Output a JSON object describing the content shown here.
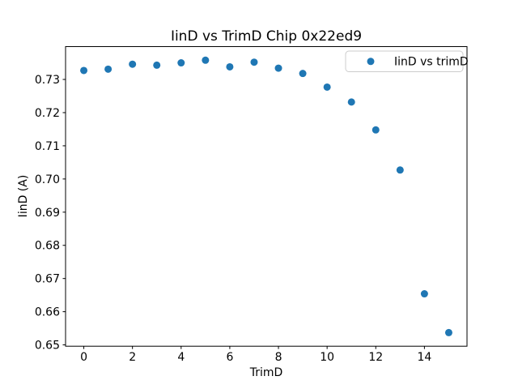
{
  "figure": {
    "background": "#ffffff"
  },
  "chart_data": {
    "type": "scatter",
    "title": "IinD vs TrimD Chip 0x22ed9",
    "xlabel": "TrimD",
    "ylabel": "IinD (A)",
    "legend": {
      "label": "IinD vs trimD",
      "position": "upper right"
    },
    "marker_color": "#1f77b4",
    "axis_color": "#000000",
    "legend_border_color": "#cccccc",
    "x": [
      0,
      1,
      2,
      3,
      4,
      5,
      6,
      7,
      8,
      9,
      10,
      11,
      12,
      13,
      14,
      15
    ],
    "y": [
      0.7327,
      0.7331,
      0.7346,
      0.7343,
      0.735,
      0.7358,
      0.7338,
      0.7352,
      0.7334,
      0.7318,
      0.7277,
      0.7232,
      0.7148,
      0.7027,
      0.6654,
      0.6537
    ],
    "xlim": [
      -0.75,
      15.75
    ],
    "ylim": [
      0.6496,
      0.7399
    ],
    "xticks": [
      0,
      2,
      4,
      6,
      8,
      10,
      12,
      14
    ],
    "yticks": [
      0.65,
      0.66,
      0.67,
      0.68,
      0.69,
      0.7,
      0.71,
      0.72,
      0.73
    ],
    "grid": false
  }
}
